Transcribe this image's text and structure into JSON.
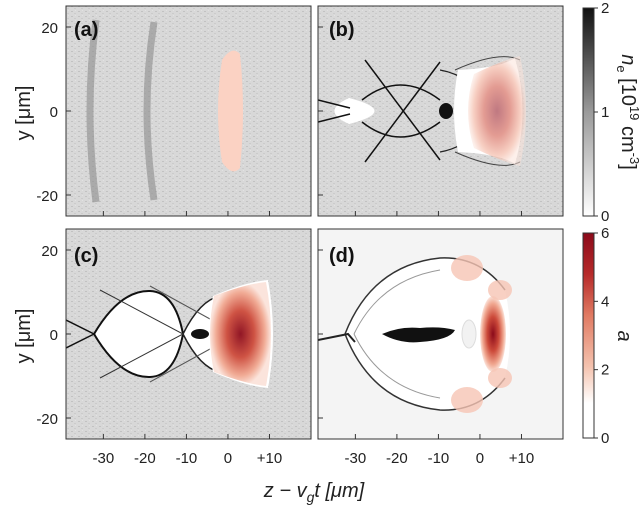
{
  "chart_data": {
    "type": "heatmap",
    "layout": "2x2 panels sharing axes",
    "xlabel": "z − v",
    "xlabel_sub": "g",
    "xlabel_tail": "t [μm]",
    "ylabel": "y [μm]",
    "x_ticks": [
      "-30",
      "-20",
      "-10",
      "0",
      "+10"
    ],
    "x_tick_values": [
      -30,
      -20,
      -10,
      0,
      10
    ],
    "y_ticks": [
      "20",
      "0",
      "-20"
    ],
    "y_tick_values": [
      20,
      0,
      -20
    ],
    "xlim": [
      -39,
      20
    ],
    "ylim": [
      -25,
      25
    ],
    "panels": [
      {
        "label": "(a)",
        "structure": "faint density wavefronts",
        "wavefront_z": [
          -34,
          -19
        ],
        "pulse_center_z": 0,
        "pulse_peak_a": 1.2
      },
      {
        "label": "(b)",
        "structure": "crossing electron filaments",
        "bubble_ends_z": [
          -36,
          -20
        ],
        "injected_bunch_z": -15,
        "pulse_center_z": 0,
        "pulse_peak_a": 2.8
      },
      {
        "label": "(c)",
        "structure": "two density cavities",
        "cavity_centers_z": [
          -28,
          -14
        ],
        "injected_bunch_z": -14,
        "pulse_center_z": 0,
        "pulse_peak_a": 5.8
      },
      {
        "label": "(d)",
        "structure": "large blown-out bubble with trapped beam",
        "bubble_z_range": [
          -36,
          -5
        ],
        "beam_z_range": [
          -30,
          -15
        ],
        "pulse_center_z": 0,
        "pulse_peak_a": 6.0
      }
    ],
    "colorbars": [
      {
        "quantity": "n_e",
        "label_main": "n",
        "label_sub": "e",
        "label_unit": " [10",
        "label_exp": "19",
        "label_unit2": " cm",
        "label_exp2": "-3",
        "label_close": "]",
        "ticks": [
          "0",
          "1",
          "2"
        ],
        "range": [
          0,
          2
        ],
        "colors": [
          "#ffffff",
          "#111111"
        ]
      },
      {
        "quantity": "a",
        "label": "a",
        "ticks": [
          "0",
          "2",
          "4",
          "6"
        ],
        "range": [
          0,
          6
        ],
        "colors": [
          "#ffffff",
          "#8b0a1a"
        ]
      }
    ]
  }
}
